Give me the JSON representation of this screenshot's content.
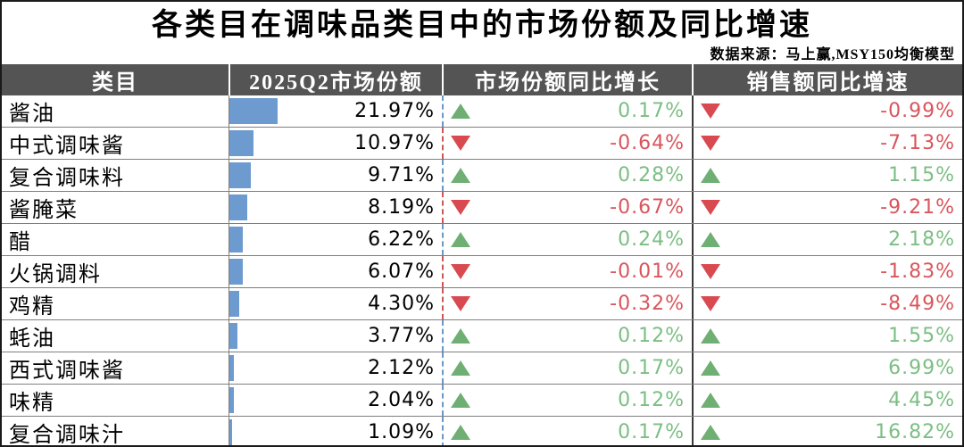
{
  "title": "各类目在调味品类目中的市场份额及同比增速",
  "source": "数据来源：马上赢,MSY150均衡模型",
  "columns": [
    "类目",
    "2025Q2市场份额",
    "市场份额同比增长",
    "销售额同比增速"
  ],
  "rows": [
    {
      "category": "酱油",
      "share": "21.97%",
      "share_value": 21.97,
      "share_yoy": "0.17%",
      "share_yoy_dir": "up",
      "sales_yoy": "-0.99%",
      "sales_yoy_dir": "down"
    },
    {
      "category": "中式调味酱",
      "share": "10.97%",
      "share_value": 10.97,
      "share_yoy": "-0.64%",
      "share_yoy_dir": "down",
      "sales_yoy": "-7.13%",
      "sales_yoy_dir": "down"
    },
    {
      "category": "复合调味料",
      "share": "9.71%",
      "share_value": 9.71,
      "share_yoy": "0.28%",
      "share_yoy_dir": "up",
      "sales_yoy": "1.15%",
      "sales_yoy_dir": "up"
    },
    {
      "category": "酱腌菜",
      "share": "8.19%",
      "share_value": 8.19,
      "share_yoy": "-0.67%",
      "share_yoy_dir": "down",
      "sales_yoy": "-9.21%",
      "sales_yoy_dir": "down"
    },
    {
      "category": "醋",
      "share": "6.22%",
      "share_value": 6.22,
      "share_yoy": "0.24%",
      "share_yoy_dir": "up",
      "sales_yoy": "2.18%",
      "sales_yoy_dir": "up"
    },
    {
      "category": "火锅调料",
      "share": "6.07%",
      "share_value": 6.07,
      "share_yoy": "-0.01%",
      "share_yoy_dir": "down",
      "sales_yoy": "-1.83%",
      "sales_yoy_dir": "down"
    },
    {
      "category": "鸡精",
      "share": "4.30%",
      "share_value": 4.3,
      "share_yoy": "-0.32%",
      "share_yoy_dir": "down",
      "sales_yoy": "-8.49%",
      "sales_yoy_dir": "down"
    },
    {
      "category": "蚝油",
      "share": "3.77%",
      "share_value": 3.77,
      "share_yoy": "0.12%",
      "share_yoy_dir": "up",
      "sales_yoy": "1.55%",
      "sales_yoy_dir": "up"
    },
    {
      "category": "西式调味酱",
      "share": "2.12%",
      "share_value": 2.12,
      "share_yoy": "0.17%",
      "share_yoy_dir": "up",
      "sales_yoy": "6.99%",
      "sales_yoy_dir": "up"
    },
    {
      "category": "味精",
      "share": "2.04%",
      "share_value": 2.04,
      "share_yoy": "0.12%",
      "share_yoy_dir": "up",
      "sales_yoy": "4.45%",
      "sales_yoy_dir": "up"
    },
    {
      "category": "复合调味汁",
      "share": "1.09%",
      "share_value": 1.09,
      "share_yoy": "0.17%",
      "share_yoy_dir": "up",
      "sales_yoy": "16.82%",
      "sales_yoy_dir": "up"
    }
  ],
  "colors": {
    "header_bg": "#545454",
    "bar_blue": "#6D9ACF",
    "up_green": "#6FAF74",
    "up_text": "#7CBE84",
    "down_red": "#D94A50",
    "down_text": "#D9565C",
    "grid_line": "#7f7f7f"
  },
  "chart_data": {
    "type": "table",
    "title": "各类目在调味品类目中的市场份额及同比增速",
    "source": "数据来源：马上赢,MSY150均衡模型",
    "columns": [
      "类目",
      "2025Q2市场份额",
      "市场份额同比增长",
      "销售额同比增速"
    ],
    "categories": [
      "酱油",
      "中式调味酱",
      "复合调味料",
      "酱腌菜",
      "醋",
      "火锅调料",
      "鸡精",
      "蚝油",
      "西式调味酱",
      "味精",
      "复合调味汁"
    ],
    "series": [
      {
        "name": "2025Q2市场份额(%)",
        "values": [
          21.97,
          10.97,
          9.71,
          8.19,
          6.22,
          6.07,
          4.3,
          3.77,
          2.12,
          2.04,
          1.09
        ]
      },
      {
        "name": "市场份额同比增长(%)",
        "values": [
          0.17,
          -0.64,
          0.28,
          -0.67,
          0.24,
          -0.01,
          -0.32,
          0.12,
          0.17,
          0.12,
          0.17
        ]
      },
      {
        "name": "销售额同比增速(%)",
        "values": [
          -0.99,
          -7.13,
          1.15,
          -9.21,
          2.18,
          -1.83,
          -8.49,
          1.55,
          6.99,
          4.45,
          16.82
        ]
      }
    ],
    "notes": "每行市场份额列含蓝色数据条，同比列含红绿三角图标（上涨绿/下跌红）"
  }
}
